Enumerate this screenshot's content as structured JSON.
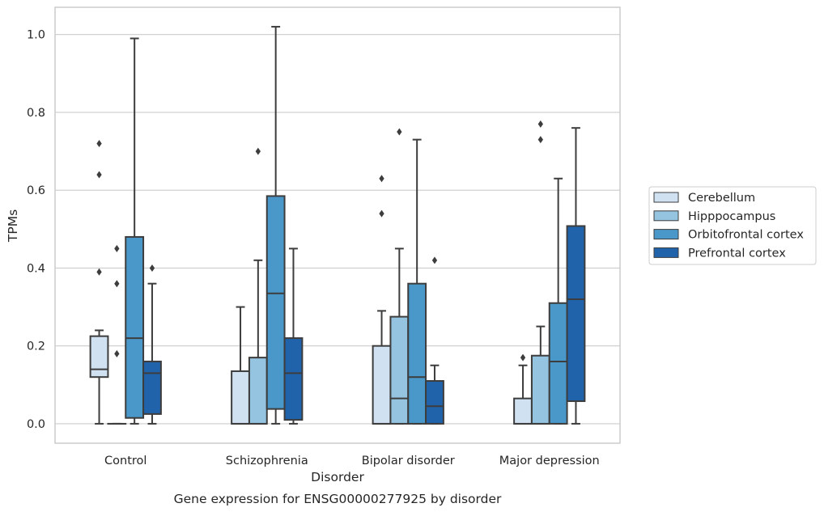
{
  "chart_data": {
    "type": "box",
    "title": "",
    "caption": "Gene expression for ENSG00000277925 by disorder",
    "xlabel": "Disorder",
    "ylabel": "TPMs",
    "categories": [
      "Control",
      "Schizophrenia",
      "Bipolar disorder",
      "Major depression"
    ],
    "ylim": [
      -0.05,
      1.07
    ],
    "yticks": [
      0.0,
      0.2,
      0.4,
      0.6,
      0.8,
      1.0
    ],
    "ytick_labels": [
      "0.0",
      "0.2",
      "0.4",
      "0.6",
      "0.8",
      "1.0"
    ],
    "grid": "horizontal",
    "legend_position": "right",
    "series": [
      {
        "name": "Cerebellum",
        "color": "#d0e1f2",
        "boxes": [
          {
            "q1": 0.12,
            "median": 0.14,
            "q3": 0.225,
            "whisker_low": 0.0,
            "whisker_high": 0.24,
            "outliers": [
              0.72,
              0.64,
              0.39
            ]
          },
          {
            "q1": 0.0,
            "median": 0.0,
            "q3": 0.135,
            "whisker_low": 0.0,
            "whisker_high": 0.3,
            "outliers": []
          },
          {
            "q1": 0.0,
            "median": 0.0,
            "q3": 0.2,
            "whisker_low": 0.0,
            "whisker_high": 0.29,
            "outliers": [
              0.63,
              0.54
            ]
          },
          {
            "q1": 0.0,
            "median": 0.0,
            "q3": 0.065,
            "whisker_low": 0.0,
            "whisker_high": 0.15,
            "outliers": [
              0.17
            ]
          }
        ]
      },
      {
        "name": "Hipppocampus",
        "color": "#94c4df",
        "boxes": [
          {
            "q1": 0.0,
            "median": 0.0,
            "q3": 0.0,
            "whisker_low": 0.0,
            "whisker_high": 0.0,
            "outliers": [
              0.45,
              0.36,
              0.18
            ]
          },
          {
            "q1": 0.0,
            "median": 0.0,
            "q3": 0.17,
            "whisker_low": 0.0,
            "whisker_high": 0.42,
            "outliers": [
              0.7
            ]
          },
          {
            "q1": 0.0,
            "median": 0.065,
            "q3": 0.275,
            "whisker_low": 0.0,
            "whisker_high": 0.45,
            "outliers": [
              0.75
            ]
          },
          {
            "q1": 0.0,
            "median": 0.0,
            "q3": 0.175,
            "whisker_low": 0.0,
            "whisker_high": 0.25,
            "outliers": [
              0.77,
              0.73
            ]
          }
        ]
      },
      {
        "name": "Orbitofrontal cortex",
        "color": "#4a98c9",
        "boxes": [
          {
            "q1": 0.015,
            "median": 0.22,
            "q3": 0.48,
            "whisker_low": 0.0,
            "whisker_high": 0.99,
            "outliers": []
          },
          {
            "q1": 0.038,
            "median": 0.335,
            "q3": 0.585,
            "whisker_low": 0.0,
            "whisker_high": 1.02,
            "outliers": []
          },
          {
            "q1": 0.0,
            "median": 0.12,
            "q3": 0.36,
            "whisker_low": 0.0,
            "whisker_high": 0.73,
            "outliers": []
          },
          {
            "q1": 0.0,
            "median": 0.16,
            "q3": 0.31,
            "whisker_low": 0.0,
            "whisker_high": 0.63,
            "outliers": []
          }
        ]
      },
      {
        "name": "Prefrontal cortex",
        "color": "#2163aa",
        "boxes": [
          {
            "q1": 0.025,
            "median": 0.13,
            "q3": 0.16,
            "whisker_low": 0.0,
            "whisker_high": 0.36,
            "outliers": [
              0.4
            ]
          },
          {
            "q1": 0.01,
            "median": 0.13,
            "q3": 0.22,
            "whisker_low": 0.0,
            "whisker_high": 0.45,
            "outliers": []
          },
          {
            "q1": 0.0,
            "median": 0.045,
            "q3": 0.11,
            "whisker_low": 0.0,
            "whisker_high": 0.15,
            "outliers": [
              0.42
            ]
          },
          {
            "q1": 0.058,
            "median": 0.32,
            "q3": 0.508,
            "whisker_low": 0.0,
            "whisker_high": 0.76,
            "outliers": []
          }
        ]
      }
    ]
  }
}
